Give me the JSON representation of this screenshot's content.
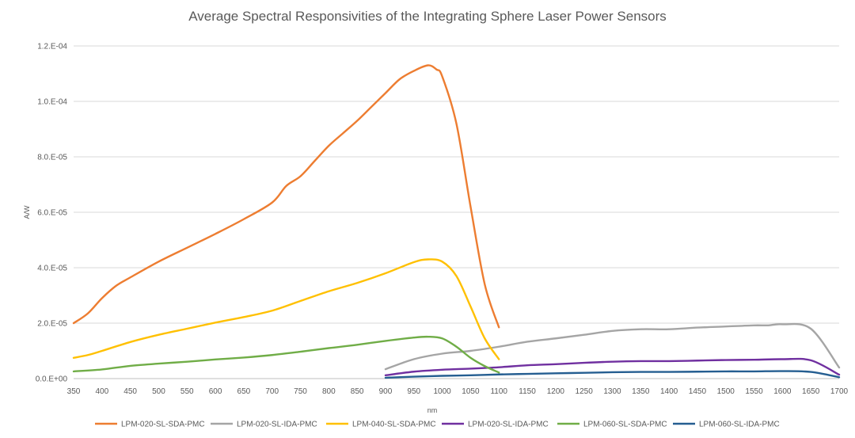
{
  "chart_data": {
    "type": "line",
    "title": "Average Spectral Responsivities of the Integrating Sphere Laser Power Sensors",
    "xlabel": "nm",
    "ylabel": "A/W",
    "xlim": [
      350,
      1700
    ],
    "ylim": [
      0,
      0.00012
    ],
    "x_ticks": [
      350,
      400,
      450,
      500,
      550,
      600,
      650,
      700,
      750,
      800,
      850,
      900,
      950,
      1000,
      1050,
      1100,
      1150,
      1200,
      1250,
      1300,
      1350,
      1400,
      1450,
      1500,
      1550,
      1600,
      1650,
      1700
    ],
    "y_ticks": [
      {
        "value": 0,
        "label": "0.0.E+00"
      },
      {
        "value": 2e-05,
        "label": "2.0.E-05"
      },
      {
        "value": 4e-05,
        "label": "4.0.E-05"
      },
      {
        "value": 6e-05,
        "label": "6.0.E-05"
      },
      {
        "value": 8e-05,
        "label": "8.0.E-05"
      },
      {
        "value": 0.0001,
        "label": "1.0.E-04"
      },
      {
        "value": 0.00012,
        "label": "1.2.E-04"
      }
    ],
    "grid": "horizontal",
    "legend_position": "bottom",
    "series": [
      {
        "name": "LPM-020-SL-SDA-PMC",
        "color": "#ED7D31",
        "x": [
          350,
          375,
          400,
          425,
          450,
          500,
          550,
          600,
          650,
          700,
          725,
          750,
          775,
          800,
          825,
          850,
          875,
          900,
          925,
          950,
          975,
          990,
          1000,
          1025,
          1050,
          1075,
          1100
        ],
        "y": [
          2e-05,
          2.35e-05,
          2.9e-05,
          3.35e-05,
          3.65e-05,
          4.22e-05,
          4.72e-05,
          5.22e-05,
          5.75e-05,
          6.35e-05,
          6.95e-05,
          7.3e-05,
          7.85e-05,
          8.4e-05,
          8.85e-05,
          9.3e-05,
          9.8e-05,
          0.000103,
          0.000108,
          0.000111,
          0.000113,
          0.0001115,
          0.000109,
          9.2e-05,
          6.2e-05,
          3.4e-05,
          1.85e-05
        ]
      },
      {
        "name": "LPM-020-SL-IDA-PMC",
        "color": "#A5A5A5",
        "x": [
          900,
          950,
          1000,
          1050,
          1100,
          1150,
          1200,
          1250,
          1300,
          1350,
          1400,
          1450,
          1500,
          1550,
          1575,
          1600,
          1650,
          1700
        ],
        "y": [
          3.4e-06,
          7e-06,
          9e-06,
          1e-05,
          1.15e-05,
          1.33e-05,
          1.45e-05,
          1.58e-05,
          1.72e-05,
          1.78e-05,
          1.78e-05,
          1.84e-05,
          1.88e-05,
          1.92e-05,
          1.92e-05,
          1.96e-05,
          1.8e-05,
          4e-06
        ]
      },
      {
        "name": "LPM-040-SL-SDA-PMC",
        "color": "#FFC000",
        "x": [
          350,
          375,
          400,
          450,
          500,
          550,
          600,
          650,
          700,
          750,
          800,
          850,
          900,
          950,
          975,
          1000,
          1025,
          1050,
          1075,
          1100
        ],
        "y": [
          7.5e-06,
          8.5e-06,
          1e-05,
          1.32e-05,
          1.58e-05,
          1.8e-05,
          2.02e-05,
          2.22e-05,
          2.45e-05,
          2.8e-05,
          3.15e-05,
          3.45e-05,
          3.8e-05,
          4.2e-05,
          4.3e-05,
          4.22e-05,
          3.7e-05,
          2.6e-05,
          1.45e-05,
          7e-06
        ]
      },
      {
        "name": "LPM-020-SL-IDA-PMC",
        "color": "#7030A0",
        "x": [
          900,
          950,
          1000,
          1050,
          1100,
          1150,
          1200,
          1250,
          1300,
          1350,
          1400,
          1450,
          1500,
          1550,
          1600,
          1650,
          1700
        ],
        "y": [
          1.2e-06,
          2.5e-06,
          3.2e-06,
          3.6e-06,
          4.1e-06,
          4.8e-06,
          5.2e-06,
          5.7e-06,
          6.1e-06,
          6.3e-06,
          6.3e-06,
          6.5e-06,
          6.7e-06,
          6.8e-06,
          7e-06,
          6.6e-06,
          1.4e-06
        ]
      },
      {
        "name": "LPM-060-SL-SDA-PMC",
        "color": "#70AD47",
        "x": [
          350,
          400,
          450,
          500,
          550,
          600,
          650,
          700,
          750,
          800,
          850,
          900,
          950,
          975,
          1000,
          1025,
          1050,
          1075,
          1100
        ],
        "y": [
          2.6e-06,
          3.3e-06,
          4.6e-06,
          5.4e-06,
          6.1e-06,
          6.9e-06,
          7.6e-06,
          8.5e-06,
          9.7e-06,
          1.1e-05,
          1.22e-05,
          1.36e-05,
          1.48e-05,
          1.51e-05,
          1.45e-05,
          1.15e-05,
          7.5e-06,
          4.5e-06,
          2.2e-06
        ]
      },
      {
        "name": "LPM-060-SL-IDA-PMC",
        "color": "#255E91",
        "x": [
          900,
          950,
          1000,
          1050,
          1100,
          1150,
          1200,
          1250,
          1300,
          1350,
          1400,
          1450,
          1500,
          1550,
          1600,
          1650,
          1700
        ],
        "y": [
          3e-07,
          7e-07,
          1e-06,
          1.2e-06,
          1.5e-06,
          1.7e-06,
          1.9e-06,
          2.1e-06,
          2.3e-06,
          2.4e-06,
          2.4e-06,
          2.5e-06,
          2.6e-06,
          2.6e-06,
          2.7e-06,
          2.4e-06,
          5e-07
        ]
      }
    ]
  }
}
